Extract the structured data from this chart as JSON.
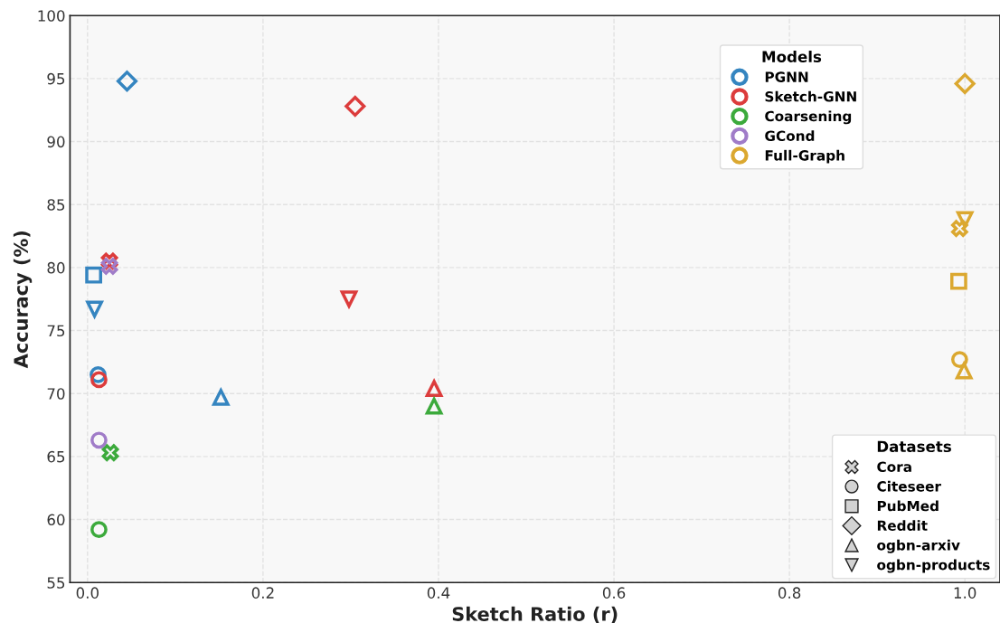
{
  "chart_data": {
    "type": "scatter",
    "xlabel": "Sketch Ratio (r)",
    "ylabel": "Accuracy (%)",
    "xlim": [
      -0.02,
      1.04
    ],
    "xticks": [
      {
        "value": 0,
        "label": "0.0"
      },
      0.2,
      0.4,
      0.6,
      0.8,
      {
        "value": 1,
        "label": "1.0"
      }
    ],
    "ylim": [
      55,
      100
    ],
    "yticks": [
      55,
      60,
      65,
      70,
      75,
      80,
      85,
      90,
      95,
      100
    ],
    "grid": true,
    "legend": "top right",
    "legend_title": "Models",
    "annotations": [
      "Datasets",
      "Cora",
      "Citeseer",
      "PubMed",
      "Reddit",
      "ogbn-arxiv",
      "ogbn-products"
    ],
    "series": [
      {
        "name": "PGNN",
        "color": "#3585c0",
        "marker": "cross",
        "x": [
          null
        ],
        "values": [
          null
        ]
      },
      {
        "color": "#3585c0",
        "marker": "circle",
        "x": [
          0.012
        ],
        "values": [
          71.5
        ]
      },
      {
        "color": "#3585c0",
        "marker": "square",
        "x": [
          0.007
        ],
        "values": [
          79.4
        ]
      },
      {
        "color": "#3585c0",
        "marker": "diamond",
        "x": [
          0.045
        ],
        "values": [
          94.8
        ]
      },
      {
        "color": "#3585c0",
        "marker": "triangle",
        "x": [
          0.152
        ],
        "values": [
          69.7
        ]
      },
      {
        "color": "#3585c0",
        "marker": "triangle_down",
        "x": [
          0.008
        ],
        "values": [
          76.7
        ]
      },
      {
        "name": "Sketch-GNN",
        "color": "#dc3c3c",
        "marker": "cross",
        "x": [
          0.025
        ],
        "values": [
          80.5
        ]
      },
      {
        "color": "#dc3c3c",
        "marker": "circle",
        "x": [
          0.013
        ],
        "values": [
          71.1
        ]
      },
      {
        "color": "#dc3c3c",
        "marker": "diamond",
        "x": [
          0.305
        ],
        "values": [
          92.8
        ]
      },
      {
        "color": "#dc3c3c",
        "marker": "triangle",
        "x": [
          0.395
        ],
        "values": [
          70.4
        ]
      },
      {
        "color": "#dc3c3c",
        "marker": "triangle_down",
        "x": [
          0.298
        ],
        "values": [
          77.5
        ]
      },
      {
        "name": "Coarsening",
        "color": "#3caa3c",
        "marker": "cross",
        "x": [
          0.026
        ],
        "values": [
          65.3
        ]
      },
      {
        "color": "#3caa3c",
        "marker": "circle",
        "x": [
          0.013
        ],
        "values": [
          59.2
        ]
      },
      {
        "color": "#3caa3c",
        "marker": "triangle",
        "x": [
          0.395
        ],
        "values": [
          69.0
        ]
      },
      {
        "name": "GCond",
        "color": "#a07cc8",
        "marker": "cross",
        "x": [
          0.025
        ],
        "values": [
          80.1
        ]
      },
      {
        "color": "#a07cc8",
        "marker": "circle",
        "x": [
          0.013
        ],
        "values": [
          66.3
        ]
      },
      {
        "name": "Full-Graph",
        "color": "#dba830",
        "marker": "cross",
        "x": [
          0.994
        ],
        "values": [
          83.1
        ]
      },
      {
        "color": "#dba830",
        "marker": "circle",
        "x": [
          0.994
        ],
        "values": [
          72.7
        ]
      },
      {
        "color": "#dba830",
        "marker": "square",
        "x": [
          0.993
        ],
        "values": [
          78.9
        ]
      },
      {
        "color": "#dba830",
        "marker": "diamond",
        "x": [
          1.0
        ],
        "values": [
          94.6
        ]
      },
      {
        "color": "#dba830",
        "marker": "triangle",
        "x": [
          0.999
        ],
        "values": [
          71.8
        ]
      },
      {
        "color": "#dba830",
        "marker": "triangle_down",
        "x": [
          1.0
        ],
        "values": [
          83.8
        ]
      }
    ]
  }
}
